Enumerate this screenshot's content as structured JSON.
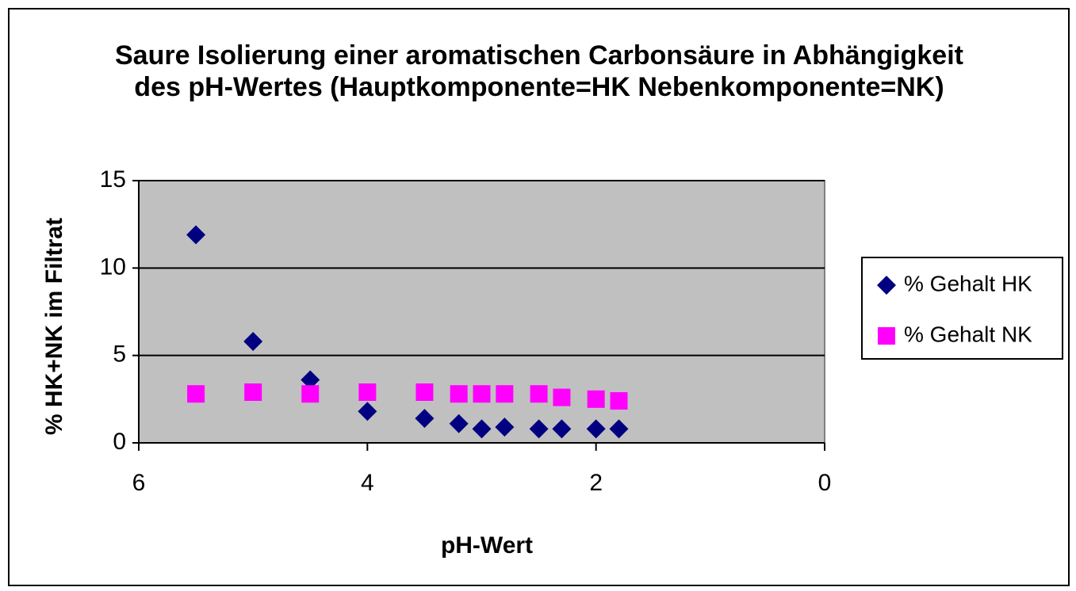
{
  "chart_data": {
    "type": "scatter",
    "title": [
      "Saure Isolierung einer aromatischen Carbonsäure  in Abhängigkeit",
      "des pH-Wertes (Hauptkomponente=HK  Nebenkomponente=NK)"
    ],
    "x_label": "pH-Wert",
    "y_label": "% HK+NK  im Filtrat",
    "xlim": [
      6,
      0
    ],
    "xticks": [
      6,
      4,
      2,
      0
    ],
    "ylim": [
      0,
      15
    ],
    "yticks": [
      0,
      5,
      10,
      15
    ],
    "grid": true,
    "legend": "right",
    "series": [
      {
        "name": "% Gehalt HK",
        "color": "#000080",
        "marker": "diamond",
        "x": [
          5.5,
          5.0,
          4.5,
          4.0,
          3.5,
          3.2,
          3.0,
          2.8,
          2.5,
          2.3,
          2.0,
          1.8
        ],
        "values": [
          11.9,
          5.8,
          3.6,
          1.8,
          1.4,
          1.1,
          0.8,
          0.9,
          0.8,
          0.8,
          0.8,
          0.8
        ]
      },
      {
        "name": "% Gehalt NK",
        "color": "#ff00ff",
        "marker": "square",
        "x": [
          5.5,
          5.0,
          4.5,
          4.0,
          3.5,
          3.2,
          3.0,
          2.8,
          2.5,
          2.3,
          2.0,
          1.8
        ],
        "values": [
          2.8,
          2.9,
          2.8,
          2.9,
          2.9,
          2.8,
          2.8,
          2.8,
          2.8,
          2.6,
          2.5,
          2.4
        ]
      }
    ]
  }
}
